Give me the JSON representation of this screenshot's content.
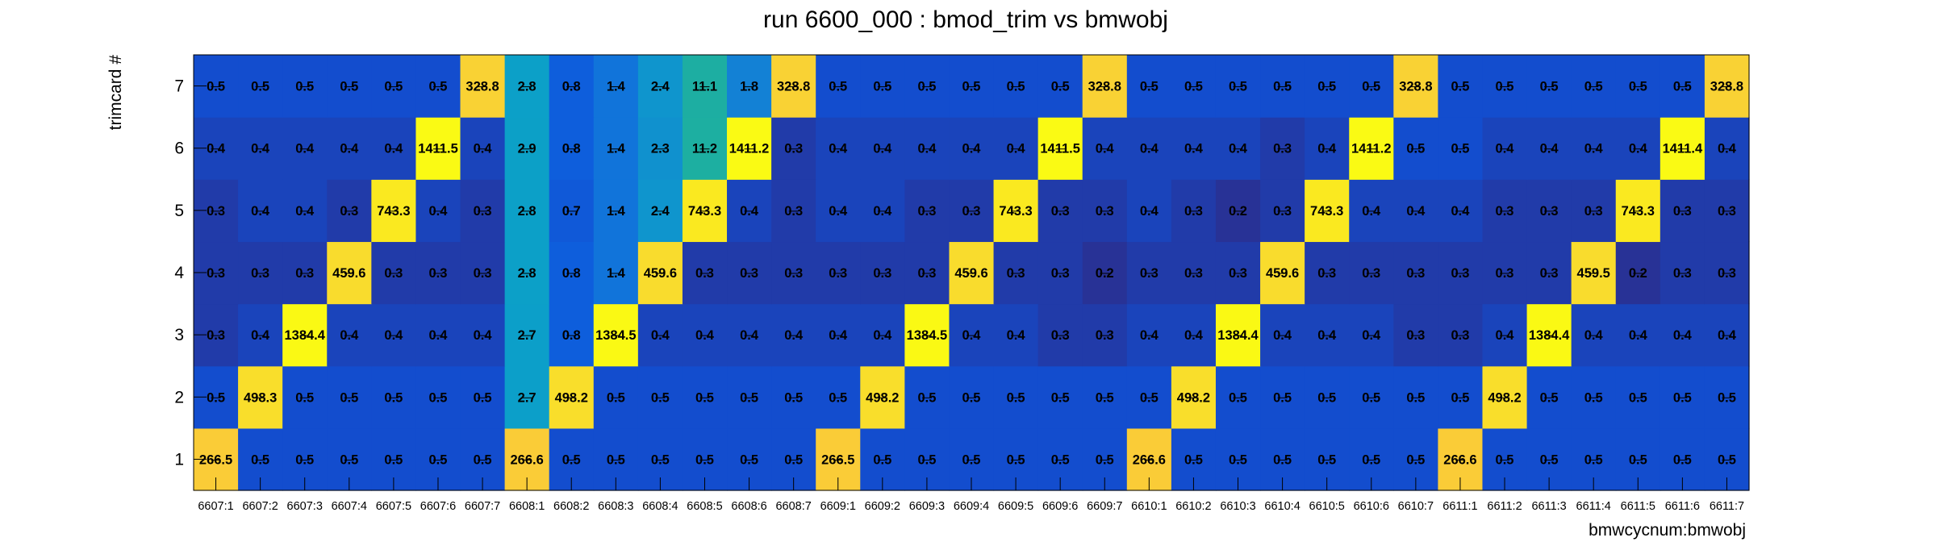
{
  "chart_data": {
    "type": "heatmap",
    "title": "run 6600_000 : bmod_trim vs bmwobj",
    "xlabel": "bmwcycnum:bmwobj",
    "ylabel": "trimcard #",
    "x_categories": [
      "6607:1",
      "6607:2",
      "6607:3",
      "6607:4",
      "6607:5",
      "6607:6",
      "6607:7",
      "6608:1",
      "6608:2",
      "6608:3",
      "6608:4",
      "6608:5",
      "6608:6",
      "6608:7",
      "6609:1",
      "6609:2",
      "6609:3",
      "6609:4",
      "6609:5",
      "6609:6",
      "6609:7",
      "6610:1",
      "6610:2",
      "6610:3",
      "6610:4",
      "6610:5",
      "6610:6",
      "6610:7",
      "6611:1",
      "6611:2",
      "6611:3",
      "6611:4",
      "6611:5",
      "6611:6",
      "6611:7"
    ],
    "y_categories": [
      "1",
      "2",
      "3",
      "4",
      "5",
      "6",
      "7"
    ],
    "values": [
      [
        "266.5",
        "0.5",
        "0.5",
        "0.5",
        "0.5",
        "0.5",
        "0.5",
        "266.6",
        "0.5",
        "0.5",
        "0.5",
        "0.5",
        "0.5",
        "0.5",
        "266.5",
        "0.5",
        "0.5",
        "0.5",
        "0.5",
        "0.5",
        "0.5",
        "266.6",
        "0.5",
        "0.5",
        "0.5",
        "0.5",
        "0.5",
        "0.5",
        "266.6",
        "0.5",
        "0.5",
        "0.5",
        "0.5",
        "0.5",
        "0.5"
      ],
      [
        "0.5",
        "498.3",
        "0.5",
        "0.5",
        "0.5",
        "0.5",
        "0.5",
        "2.7",
        "498.2",
        "0.5",
        "0.5",
        "0.5",
        "0.5",
        "0.5",
        "0.5",
        "498.2",
        "0.5",
        "0.5",
        "0.5",
        "0.5",
        "0.5",
        "0.5",
        "498.2",
        "0.5",
        "0.5",
        "0.5",
        "0.5",
        "0.5",
        "0.5",
        "498.2",
        "0.5",
        "0.5",
        "0.5",
        "0.5",
        "0.5"
      ],
      [
        "0.3",
        "0.4",
        "1384.4",
        "0.4",
        "0.4",
        "0.4",
        "0.4",
        "2.7",
        "0.8",
        "1384.5",
        "0.4",
        "0.4",
        "0.4",
        "0.4",
        "0.4",
        "0.4",
        "1384.5",
        "0.4",
        "0.4",
        "0.3",
        "0.3",
        "0.4",
        "0.4",
        "1384.4",
        "0.4",
        "0.4",
        "0.4",
        "0.3",
        "0.3",
        "0.4",
        "1384.4",
        "0.4",
        "0.4",
        "0.4",
        "0.4"
      ],
      [
        "0.3",
        "0.3",
        "0.3",
        "459.6",
        "0.3",
        "0.3",
        "0.3",
        "2.8",
        "0.8",
        "1.4",
        "459.6",
        "0.3",
        "0.3",
        "0.3",
        "0.3",
        "0.3",
        "0.3",
        "459.6",
        "0.3",
        "0.3",
        "0.2",
        "0.3",
        "0.3",
        "0.3",
        "459.6",
        "0.3",
        "0.3",
        "0.3",
        "0.3",
        "0.3",
        "0.3",
        "459.5",
        "0.2",
        "0.3",
        "0.3"
      ],
      [
        "0.3",
        "0.4",
        "0.4",
        "0.3",
        "743.3",
        "0.4",
        "0.3",
        "2.8",
        "0.7",
        "1.4",
        "2.4",
        "743.3",
        "0.4",
        "0.3",
        "0.4",
        "0.4",
        "0.3",
        "0.3",
        "743.3",
        "0.3",
        "0.3",
        "0.4",
        "0.3",
        "0.2",
        "0.3",
        "743.3",
        "0.4",
        "0.4",
        "0.4",
        "0.3",
        "0.3",
        "0.3",
        "743.3",
        "0.3",
        "0.3"
      ],
      [
        "0.4",
        "0.4",
        "0.4",
        "0.4",
        "0.4",
        "1411.5",
        "0.4",
        "2.9",
        "0.8",
        "1.4",
        "2.3",
        "11.2",
        "1411.2",
        "0.3",
        "0.4",
        "0.4",
        "0.4",
        "0.4",
        "0.4",
        "1411.5",
        "0.4",
        "0.4",
        "0.4",
        "0.4",
        "0.3",
        "0.4",
        "1411.2",
        "0.5",
        "0.5",
        "0.4",
        "0.4",
        "0.4",
        "0.4",
        "1411.4",
        "0.4"
      ],
      [
        "0.5",
        "0.5",
        "0.5",
        "0.5",
        "0.5",
        "0.5",
        "328.8",
        "2.8",
        "0.8",
        "1.4",
        "2.4",
        "11.1",
        "1.8",
        "328.8",
        "0.5",
        "0.5",
        "0.5",
        "0.5",
        "0.5",
        "0.5",
        "328.8",
        "0.5",
        "0.5",
        "0.5",
        "0.5",
        "0.5",
        "0.5",
        "328.8",
        "0.5",
        "0.5",
        "0.5",
        "0.5",
        "0.5",
        "0.5",
        "328.8"
      ]
    ]
  }
}
